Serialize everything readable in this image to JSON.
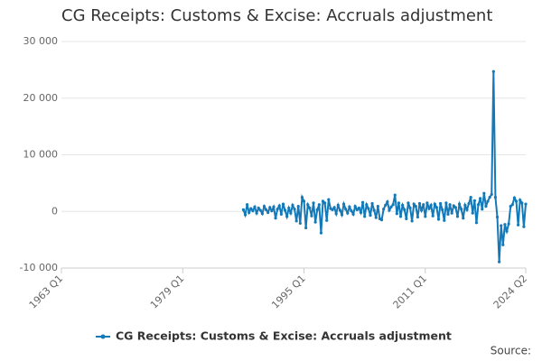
{
  "chart_data": {
    "type": "line",
    "title": "CG Receipts: Customs & Excise: Accruals adjustment",
    "source": "Source:",
    "x": [
      "1987 Q1",
      "1987 Q2",
      "1987 Q3",
      "1987 Q4",
      "1988 Q1",
      "1988 Q2",
      "1988 Q3",
      "1988 Q4",
      "1989 Q1",
      "1989 Q2",
      "1989 Q3",
      "1989 Q4",
      "1990 Q1",
      "1990 Q2",
      "1990 Q3",
      "1990 Q4",
      "1991 Q1",
      "1991 Q2",
      "1991 Q3",
      "1991 Q4",
      "1992 Q1",
      "1992 Q2",
      "1992 Q3",
      "1992 Q4",
      "1993 Q1",
      "1993 Q2",
      "1993 Q3",
      "1993 Q4",
      "1994 Q1",
      "1994 Q2",
      "1994 Q3",
      "1994 Q4",
      "1995 Q1",
      "1995 Q2",
      "1995 Q3",
      "1995 Q4",
      "1996 Q1",
      "1996 Q2",
      "1996 Q3",
      "1996 Q4",
      "1997 Q1",
      "1997 Q2",
      "1997 Q3",
      "1997 Q4",
      "1998 Q1",
      "1998 Q2",
      "1998 Q3",
      "1998 Q4",
      "1999 Q1",
      "1999 Q2",
      "1999 Q3",
      "1999 Q4",
      "2000 Q1",
      "2000 Q2",
      "2000 Q3",
      "2000 Q4",
      "2001 Q1",
      "2001 Q2",
      "2001 Q3",
      "2001 Q4",
      "2002 Q1",
      "2002 Q2",
      "2002 Q3",
      "2002 Q4",
      "2003 Q1",
      "2003 Q2",
      "2003 Q3",
      "2003 Q4",
      "2004 Q1",
      "2004 Q2",
      "2004 Q3",
      "2004 Q4",
      "2005 Q1",
      "2005 Q2",
      "2005 Q3",
      "2005 Q4",
      "2006 Q1",
      "2006 Q2",
      "2006 Q3",
      "2006 Q4",
      "2007 Q1",
      "2007 Q2",
      "2007 Q3",
      "2007 Q4",
      "2008 Q1",
      "2008 Q2",
      "2008 Q3",
      "2008 Q4",
      "2009 Q1",
      "2009 Q2",
      "2009 Q3",
      "2009 Q4",
      "2010 Q1",
      "2010 Q2",
      "2010 Q3",
      "2010 Q4",
      "2011 Q1",
      "2011 Q2",
      "2011 Q3",
      "2011 Q4",
      "2012 Q1",
      "2012 Q2",
      "2012 Q3",
      "2012 Q4",
      "2013 Q1",
      "2013 Q2",
      "2013 Q3",
      "2013 Q4",
      "2014 Q1",
      "2014 Q2",
      "2014 Q3",
      "2014 Q4",
      "2015 Q1",
      "2015 Q2",
      "2015 Q3",
      "2015 Q4",
      "2016 Q1",
      "2016 Q2",
      "2016 Q3",
      "2016 Q4",
      "2017 Q1",
      "2017 Q2",
      "2017 Q3",
      "2017 Q4",
      "2018 Q1",
      "2018 Q2",
      "2018 Q3",
      "2018 Q4",
      "2019 Q1",
      "2019 Q2",
      "2019 Q3",
      "2019 Q4",
      "2020 Q1",
      "2020 Q2",
      "2020 Q3",
      "2020 Q4",
      "2021 Q1",
      "2021 Q2",
      "2021 Q3",
      "2021 Q4",
      "2022 Q1",
      "2022 Q2",
      "2022 Q3",
      "2022 Q4",
      "2023 Q1",
      "2023 Q2",
      "2023 Q3",
      "2023 Q4",
      "2024 Q1",
      "2024 Q2"
    ],
    "series": [
      {
        "name": "CG Receipts: Customs & Excise: Accruals adjustment",
        "color": "#1379b8",
        "values": [
          300,
          -600,
          1200,
          -200,
          500,
          100,
          800,
          -300,
          600,
          200,
          -400,
          900,
          300,
          -200,
          700,
          100,
          800,
          -1200,
          400,
          1000,
          -500,
          1300,
          200,
          -900,
          600,
          -300,
          1100,
          400,
          -1700,
          900,
          -2100,
          2500,
          1800,
          -2900,
          1200,
          600,
          -800,
          1500,
          -1900,
          300,
          1200,
          -3800,
          1800,
          1500,
          -1600,
          2100,
          500,
          300,
          700,
          -400,
          1100,
          200,
          -600,
          1300,
          400,
          -300,
          800,
          100,
          -500,
          900,
          300,
          600,
          -200,
          1600,
          -900,
          1200,
          500,
          -700,
          1400,
          200,
          -1100,
          900,
          -1300,
          -1500,
          400,
          1100,
          1700,
          200,
          800,
          1200,
          2900,
          -400,
          1500,
          -900,
          1100,
          300,
          -1300,
          1500,
          600,
          -1700,
          1300,
          900,
          -1000,
          1400,
          200,
          1200,
          -900,
          1500,
          500,
          1100,
          -800,
          1300,
          700,
          -1400,
          1400,
          300,
          -1600,
          1500,
          -500,
          1200,
          -300,
          1000,
          700,
          -900,
          1300,
          400,
          -1200,
          1100,
          300,
          1400,
          2500,
          -300,
          1900,
          -2000,
          1200,
          2300,
          400,
          3200,
          900,
          1800,
          2500,
          3000,
          24700,
          2500,
          -1000,
          -8900,
          -2500,
          -5900,
          -2300,
          -3500,
          -2200,
          900,
          1200,
          2400,
          1800,
          -2400,
          2000,
          1500,
          -2700,
          1300
        ]
      }
    ],
    "xlim": [
      "1963 Q1",
      "2024 Q2"
    ],
    "xticks": [
      "1963 Q1",
      "1979 Q1",
      "1995 Q1",
      "2011 Q1",
      "2024 Q2"
    ],
    "ylim": [
      -10000,
      30000
    ],
    "yticks": [
      {
        "value": -10000,
        "label": "-10 000"
      },
      0,
      {
        "value": 10000,
        "label": "10 000"
      },
      {
        "value": 20000,
        "label": "20 000"
      },
      {
        "value": 30000,
        "label": "30 000"
      }
    ],
    "grid": true
  }
}
